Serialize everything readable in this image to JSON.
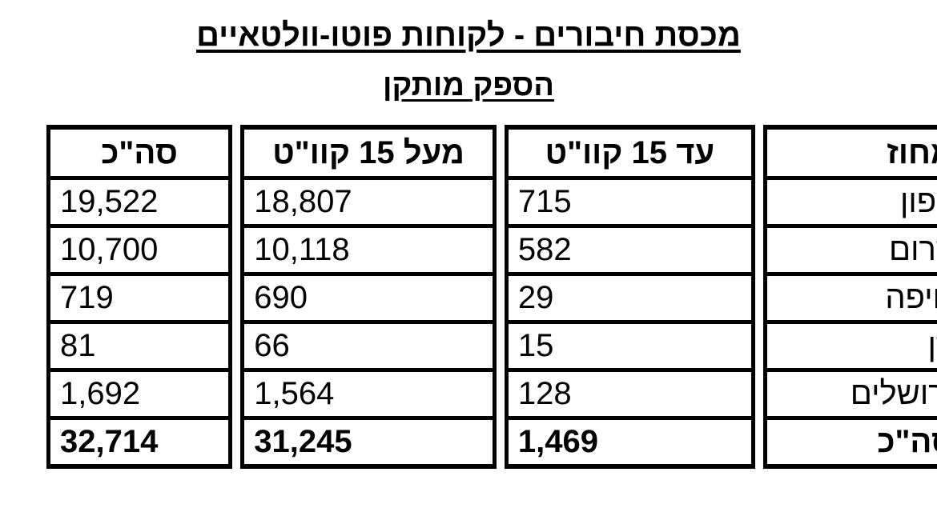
{
  "header": {
    "title": "מכסת חיבורים - לקוחות פוטו-וולטאיים",
    "subtitle": "הספק מותקן"
  },
  "table": {
    "columns": [
      "מחוז",
      "עד 15 קוו\"ט",
      "מעל 15 קוו\"ט",
      "סה\"כ"
    ],
    "rows": [
      [
        "צפון",
        "715",
        "18,807",
        "19,522"
      ],
      [
        "דרום",
        "582",
        "10,118",
        "10,700"
      ],
      [
        "חיפה",
        "29",
        "690",
        "719"
      ],
      [
        "דן",
        "15",
        "66",
        "81"
      ],
      [
        "ירושלים",
        "128",
        "1,564",
        "1,692"
      ],
      [
        "סה\"כ",
        "1,469",
        "31,245",
        "32,714"
      ]
    ]
  }
}
